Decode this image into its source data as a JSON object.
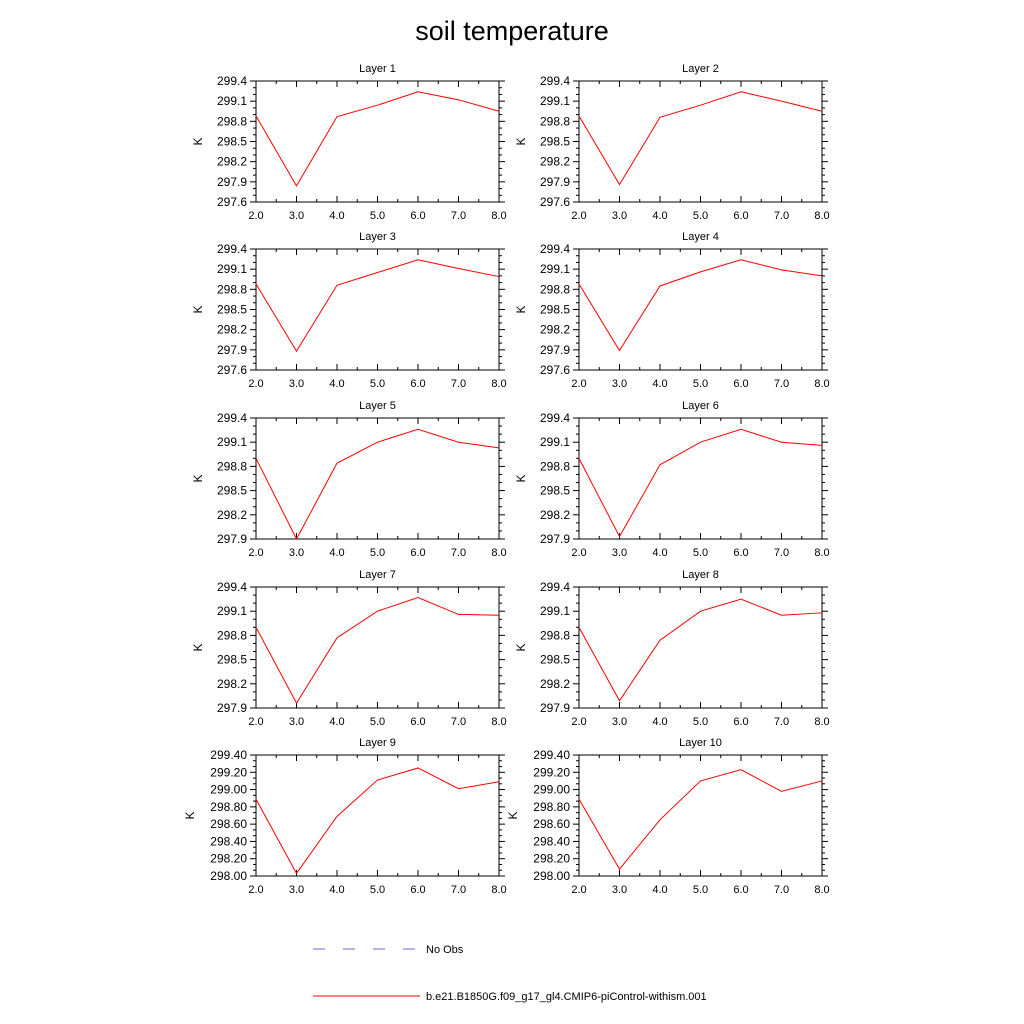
{
  "title": "soil temperature",
  "colors": {
    "model_line": "#ff0000",
    "obs_line": "#6b6bd6",
    "axis": "#000000"
  },
  "legend": {
    "obs_label": "No Obs",
    "model_label": "b.e21.B1850G.f09_g17_gl4.CMIP6-piControl-withism.001"
  },
  "chart_data": [
    {
      "type": "line",
      "title": "Layer 1",
      "ylabel": "K",
      "xlim": [
        2,
        8
      ],
      "ylim": [
        297.6,
        299.4
      ],
      "xticks": [
        "2.0",
        "3.0",
        "4.0",
        "5.0",
        "6.0",
        "7.0",
        "8.0"
      ],
      "x": [
        2,
        3,
        4,
        5,
        6,
        7,
        8
      ],
      "yticks": [
        "297.6",
        "297.9",
        "298.2",
        "298.5",
        "298.8",
        "299.1",
        "299.4"
      ],
      "series": [
        {
          "name": "b.e21.B1850G.f09_g17_gl4.CMIP6-piControl-withism.001",
          "values": [
            298.88,
            297.84,
            298.87,
            299.04,
            299.24,
            299.12,
            298.95
          ]
        }
      ]
    },
    {
      "type": "line",
      "title": "Layer 2",
      "ylabel": "K",
      "xlim": [
        2,
        8
      ],
      "ylim": [
        297.6,
        299.4
      ],
      "xticks": [
        "2.0",
        "3.0",
        "4.0",
        "5.0",
        "6.0",
        "7.0",
        "8.0"
      ],
      "x": [
        2,
        3,
        4,
        5,
        6,
        7,
        8
      ],
      "yticks": [
        "297.6",
        "297.9",
        "298.2",
        "298.5",
        "298.8",
        "299.1",
        "299.4"
      ],
      "series": [
        {
          "name": "b.e21.B1850G.f09_g17_gl4.CMIP6-piControl-withism.001",
          "values": [
            298.88,
            297.86,
            298.86,
            299.04,
            299.24,
            299.1,
            298.95
          ]
        }
      ]
    },
    {
      "type": "line",
      "title": "Layer 3",
      "ylabel": "K",
      "xlim": [
        2,
        8
      ],
      "ylim": [
        297.6,
        299.4
      ],
      "xticks": [
        "2.0",
        "3.0",
        "4.0",
        "5.0",
        "6.0",
        "7.0",
        "8.0"
      ],
      "x": [
        2,
        3,
        4,
        5,
        6,
        7,
        8
      ],
      "yticks": [
        "297.6",
        "297.9",
        "298.2",
        "298.5",
        "298.8",
        "299.1",
        "299.4"
      ],
      "series": [
        {
          "name": "b.e21.B1850G.f09_g17_gl4.CMIP6-piControl-withism.001",
          "values": [
            298.88,
            297.88,
            298.86,
            299.05,
            299.24,
            299.11,
            298.99
          ]
        }
      ]
    },
    {
      "type": "line",
      "title": "Layer 4",
      "ylabel": "K",
      "xlim": [
        2,
        8
      ],
      "ylim": [
        297.6,
        299.4
      ],
      "xticks": [
        "2.0",
        "3.0",
        "4.0",
        "5.0",
        "6.0",
        "7.0",
        "8.0"
      ],
      "x": [
        2,
        3,
        4,
        5,
        6,
        7,
        8
      ],
      "yticks": [
        "297.6",
        "297.9",
        "298.2",
        "298.5",
        "298.8",
        "299.1",
        "299.4"
      ],
      "series": [
        {
          "name": "b.e21.B1850G.f09_g17_gl4.CMIP6-piControl-withism.001",
          "values": [
            298.88,
            297.89,
            298.85,
            299.06,
            299.24,
            299.09,
            299.0
          ]
        }
      ]
    },
    {
      "type": "line",
      "title": "Layer 5",
      "ylabel": "K",
      "xlim": [
        2,
        8
      ],
      "ylim": [
        297.9,
        299.4
      ],
      "xticks": [
        "2.0",
        "3.0",
        "4.0",
        "5.0",
        "6.0",
        "7.0",
        "8.0"
      ],
      "x": [
        2,
        3,
        4,
        5,
        6,
        7,
        8
      ],
      "yticks": [
        "297.9",
        "298.2",
        "298.5",
        "298.8",
        "299.1",
        "299.4"
      ],
      "series": [
        {
          "name": "b.e21.B1850G.f09_g17_gl4.CMIP6-piControl-withism.001",
          "values": [
            298.9,
            297.9,
            298.84,
            299.1,
            299.26,
            299.1,
            299.03
          ]
        }
      ]
    },
    {
      "type": "line",
      "title": "Layer 6",
      "ylabel": "K",
      "xlim": [
        2,
        8
      ],
      "ylim": [
        297.9,
        299.4
      ],
      "xticks": [
        "2.0",
        "3.0",
        "4.0",
        "5.0",
        "6.0",
        "7.0",
        "8.0"
      ],
      "x": [
        2,
        3,
        4,
        5,
        6,
        7,
        8
      ],
      "yticks": [
        "297.9",
        "298.2",
        "298.5",
        "298.8",
        "299.1",
        "299.4"
      ],
      "series": [
        {
          "name": "b.e21.B1850G.f09_g17_gl4.CMIP6-piControl-withism.001",
          "values": [
            298.9,
            297.93,
            298.82,
            299.1,
            299.26,
            299.1,
            299.06
          ]
        }
      ]
    },
    {
      "type": "line",
      "title": "Layer 7",
      "ylabel": "K",
      "xlim": [
        2,
        8
      ],
      "ylim": [
        297.9,
        299.4
      ],
      "xticks": [
        "2.0",
        "3.0",
        "4.0",
        "5.0",
        "6.0",
        "7.0",
        "8.0"
      ],
      "x": [
        2,
        3,
        4,
        5,
        6,
        7,
        8
      ],
      "yticks": [
        "297.9",
        "298.2",
        "298.5",
        "298.8",
        "299.1",
        "299.4"
      ],
      "series": [
        {
          "name": "b.e21.B1850G.f09_g17_gl4.CMIP6-piControl-withism.001",
          "values": [
            298.9,
            297.96,
            298.77,
            299.1,
            299.27,
            299.06,
            299.05
          ]
        }
      ]
    },
    {
      "type": "line",
      "title": "Layer 8",
      "ylabel": "K",
      "xlim": [
        2,
        8
      ],
      "ylim": [
        297.9,
        299.4
      ],
      "xticks": [
        "2.0",
        "3.0",
        "4.0",
        "5.0",
        "6.0",
        "7.0",
        "8.0"
      ],
      "x": [
        2,
        3,
        4,
        5,
        6,
        7,
        8
      ],
      "yticks": [
        "297.9",
        "298.2",
        "298.5",
        "298.8",
        "299.1",
        "299.4"
      ],
      "series": [
        {
          "name": "b.e21.B1850G.f09_g17_gl4.CMIP6-piControl-withism.001",
          "values": [
            298.9,
            297.99,
            298.74,
            299.1,
            299.25,
            299.05,
            299.08
          ]
        }
      ]
    },
    {
      "type": "line",
      "title": "Layer 9",
      "ylabel": "K",
      "xlim": [
        2,
        8
      ],
      "ylim": [
        298.0,
        299.4
      ],
      "xticks": [
        "2.0",
        "3.0",
        "4.0",
        "5.0",
        "6.0",
        "7.0",
        "8.0"
      ],
      "x": [
        2,
        3,
        4,
        5,
        6,
        7,
        8
      ],
      "yticks": [
        "298.00",
        "298.20",
        "298.40",
        "298.60",
        "298.80",
        "299.00",
        "299.20",
        "299.40"
      ],
      "series": [
        {
          "name": "b.e21.B1850G.f09_g17_gl4.CMIP6-piControl-withism.001",
          "values": [
            298.89,
            298.03,
            298.69,
            299.11,
            299.25,
            299.01,
            299.09
          ]
        }
      ]
    },
    {
      "type": "line",
      "title": "Layer 10",
      "ylabel": "K",
      "xlim": [
        2,
        8
      ],
      "ylim": [
        298.0,
        299.4
      ],
      "xticks": [
        "2.0",
        "3.0",
        "4.0",
        "5.0",
        "6.0",
        "7.0",
        "8.0"
      ],
      "x": [
        2,
        3,
        4,
        5,
        6,
        7,
        8
      ],
      "yticks": [
        "298.00",
        "298.20",
        "298.40",
        "298.60",
        "298.80",
        "299.00",
        "299.20",
        "299.40"
      ],
      "series": [
        {
          "name": "b.e21.B1850G.f09_g17_gl4.CMIP6-piControl-withism.001",
          "values": [
            298.89,
            298.08,
            298.65,
            299.1,
            299.23,
            298.98,
            299.1
          ]
        }
      ]
    }
  ]
}
